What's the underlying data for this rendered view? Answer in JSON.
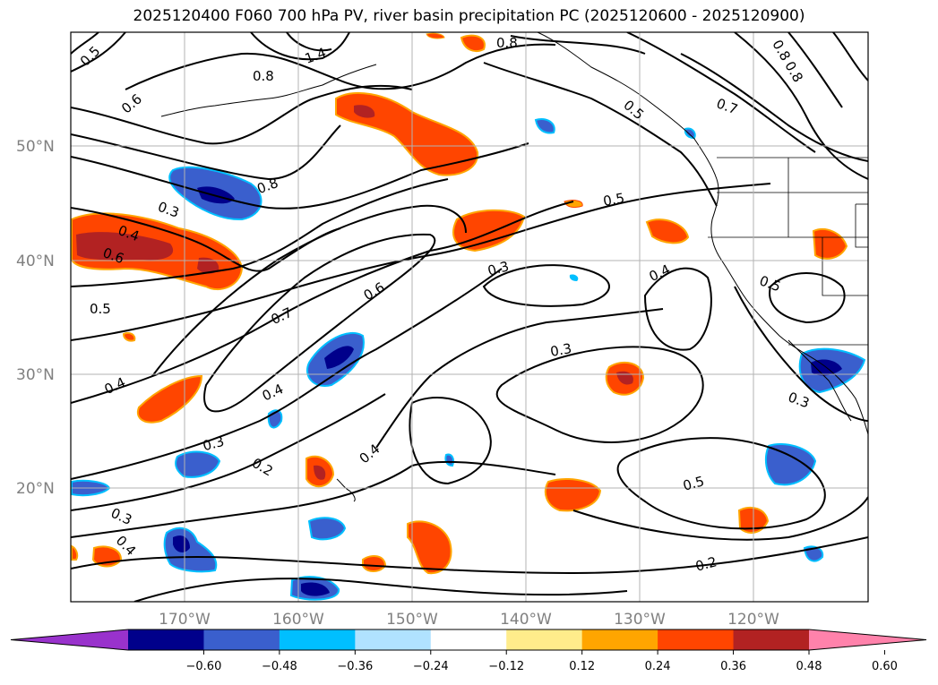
{
  "title": "2025120400 F060 700 hPa PV, river basin precipitation PC (2025120600 - 2025120900)",
  "lat_labels": [
    "50°N",
    "40°N",
    "30°N",
    "20°N"
  ],
  "lon_labels": [
    "170°W",
    "160°W",
    "150°W",
    "140°W",
    "130°W",
    "120°W"
  ],
  "contour_labels": [
    "0.5",
    "0.6",
    "0.8",
    "1.4",
    "0.8",
    "0.3",
    "0.4",
    "0.6",
    "0.5",
    "0.4",
    "0.7",
    "0.6",
    "0.4",
    "0.3",
    "0.2",
    "0.3",
    "0.4",
    "0.4",
    "0.3",
    "0.5",
    "0.3",
    "0.4",
    "0.5",
    "0.5",
    "0.2",
    "0.3",
    "0.8",
    "0.7",
    "0.8",
    "0.8",
    "0.5"
  ],
  "colorbar": {
    "colors": [
      "#9932cc",
      "#00008b",
      "#3a5fcd",
      "#00bfff",
      "#b0e2ff",
      "#ffffff",
      "#ffec8b",
      "#ffa500",
      "#ff4500",
      "#b22222",
      "#ff82ab"
    ],
    "tick_labels": [
      "−0.60",
      "−0.48",
      "−0.36",
      "−0.24",
      "−0.12",
      "0.12",
      "0.24",
      "0.36",
      "0.48",
      "0.60"
    ]
  }
}
